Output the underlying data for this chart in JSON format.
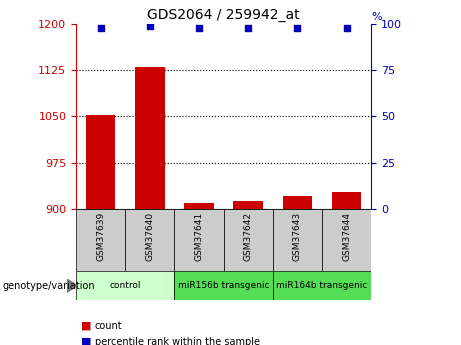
{
  "title": "GDS2064 / 259942_at",
  "samples": [
    "GSM37639",
    "GSM37640",
    "GSM37641",
    "GSM37642",
    "GSM37643",
    "GSM37644"
  ],
  "bar_values": [
    1052,
    1131,
    910,
    912,
    921,
    927
  ],
  "percentile_values": [
    98,
    99,
    98,
    98,
    98,
    98
  ],
  "bar_color": "#cc0000",
  "dot_color": "#0000bb",
  "ylim_left": [
    900,
    1200
  ],
  "ylim_right": [
    0,
    100
  ],
  "yticks_left": [
    900,
    975,
    1050,
    1125,
    1200
  ],
  "yticks_right": [
    0,
    25,
    50,
    75,
    100
  ],
  "groups_info": [
    {
      "indices": [
        0,
        1
      ],
      "label": "control",
      "color": "#ccffcc"
    },
    {
      "indices": [
        2,
        3
      ],
      "label": "miR156b transgenic",
      "color": "#55dd55"
    },
    {
      "indices": [
        4,
        5
      ],
      "label": "miR164b transgenic",
      "color": "#55dd55"
    }
  ],
  "legend_labels": [
    "count",
    "percentile rank within the sample"
  ],
  "legend_colors": [
    "#cc0000",
    "#0000bb"
  ],
  "genotype_label": "genotype/variation",
  "background_color": "#ffffff",
  "sample_box_color": "#cccccc"
}
